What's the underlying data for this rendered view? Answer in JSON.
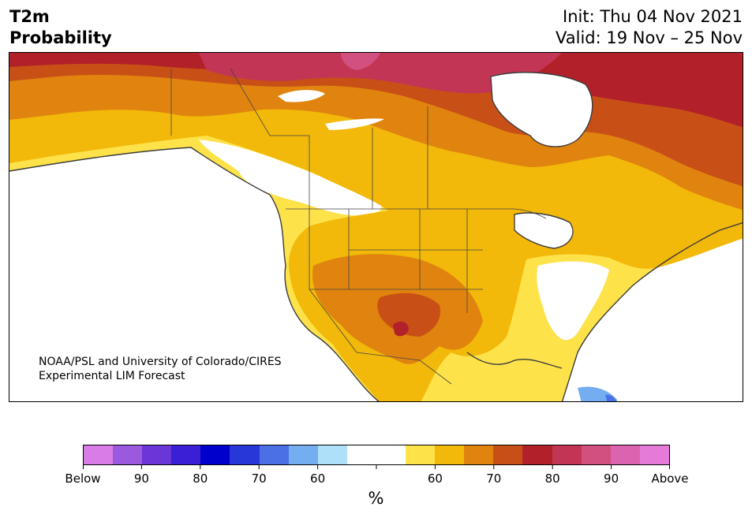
{
  "title": {
    "line1": "T2m",
    "line2": "Probability"
  },
  "header_right": {
    "init": "Init: Thu 04 Nov 2021",
    "valid": "Valid: 19 Nov – 25 Nov"
  },
  "credit": {
    "line1": "NOAA/PSL and University of Colorado/CIRES",
    "line2": "Experimental LIM Forecast"
  },
  "colorbar": {
    "colors": [
      "#d97ce8",
      "#9b59e0",
      "#6a36d8",
      "#3a1fd6",
      "#0000cc",
      "#2737d8",
      "#4b70e6",
      "#74aef0",
      "#aee0fa",
      "#ffffff",
      "#ffffff",
      "#fde24a",
      "#f2b80a",
      "#e0840f",
      "#c85016",
      "#b2202a",
      "#c23555",
      "#d1507f",
      "#dc63b0",
      "#e57ad8"
    ],
    "labels": [
      "Below",
      "90",
      "80",
      "70",
      "60",
      "60",
      "70",
      "80",
      "90",
      "Above"
    ],
    "unit": "%"
  },
  "map_colors": {
    "above_50": "#fde24a",
    "above_60": "#f2b80a",
    "above_70": "#e0840f",
    "above_80": "#c85016",
    "above_90": "#b2202a",
    "above_95": "#c23555",
    "below_60": "#74aef0",
    "below_70": "#4b70e6",
    "coast": "#3c3c3c"
  }
}
